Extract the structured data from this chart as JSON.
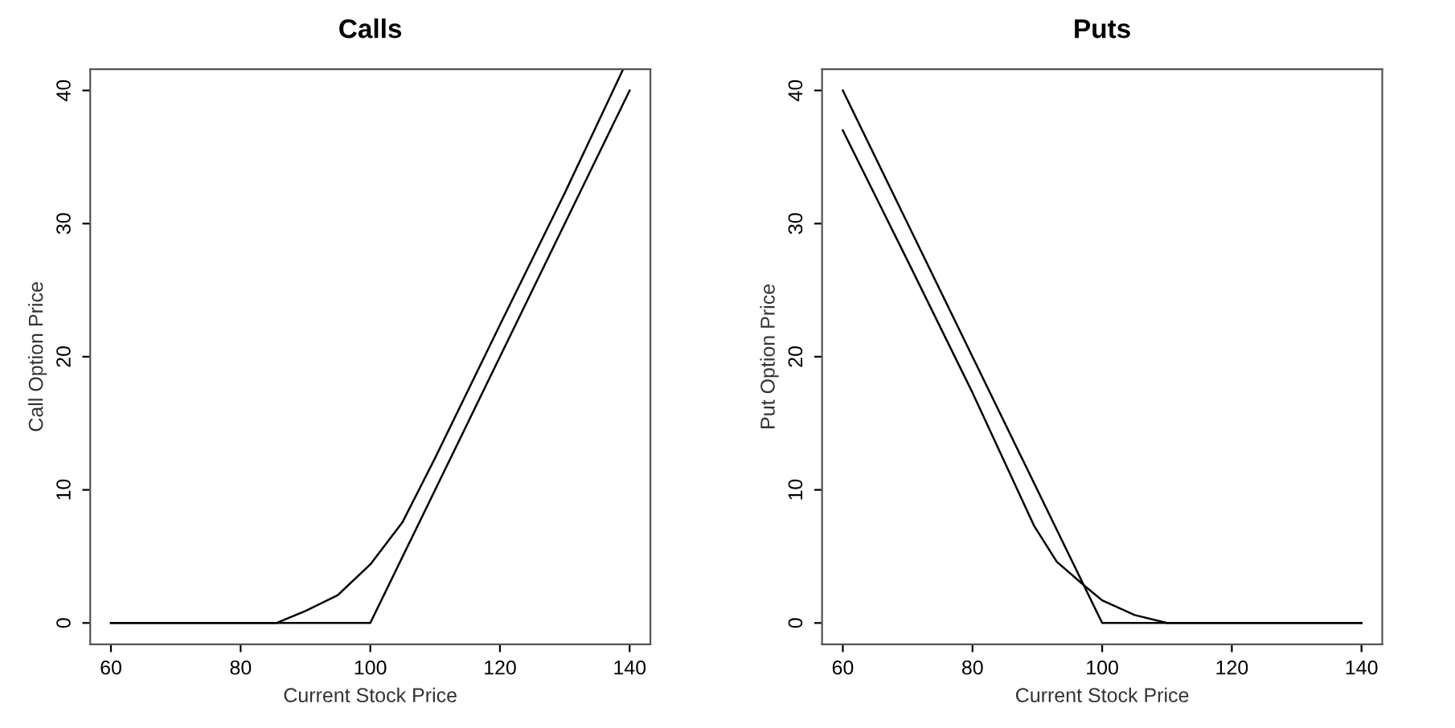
{
  "chart_data": [
    {
      "type": "line",
      "title": "Calls",
      "xlabel": "Current Stock Price",
      "ylabel": "Call Option Price",
      "xlim": [
        56.8,
        143.2
      ],
      "ylim": [
        -1.6,
        41.6
      ],
      "xticks": [
        60,
        80,
        100,
        120,
        140
      ],
      "yticks": [
        0,
        10,
        20,
        30,
        40
      ],
      "grid": false,
      "legend": false,
      "series": [
        {
          "color": "#000000",
          "x": [
            60,
            100,
            140
          ],
          "values": [
            0,
            0,
            40
          ]
        },
        {
          "color": "#000000",
          "x": [
            60,
            85.5,
            90,
            95,
            100,
            105,
            110,
            120,
            130,
            139
          ],
          "values": [
            0,
            0,
            0.9,
            2.1,
            4.4,
            7.6,
            12.4,
            22.4,
            32.3,
            41.6
          ]
        }
      ]
    },
    {
      "type": "line",
      "title": "Puts",
      "xlabel": "Current Stock Price",
      "ylabel": "Put Option Price",
      "xlim": [
        56.8,
        143.2
      ],
      "ylim": [
        -1.6,
        41.6
      ],
      "xticks": [
        60,
        80,
        100,
        120,
        140
      ],
      "yticks": [
        0,
        10,
        20,
        30,
        40
      ],
      "grid": false,
      "legend": false,
      "series": [
        {
          "color": "#000000",
          "x": [
            60,
            100,
            140
          ],
          "values": [
            40,
            0,
            0
          ]
        },
        {
          "color": "#000000",
          "x": [
            60,
            70,
            80,
            89.5,
            93,
            97.5,
            100,
            105,
            110,
            140
          ],
          "values": [
            37,
            27.2,
            17.3,
            7.3,
            4.6,
            2.7,
            1.7,
            0.6,
            0,
            0
          ]
        }
      ]
    }
  ]
}
